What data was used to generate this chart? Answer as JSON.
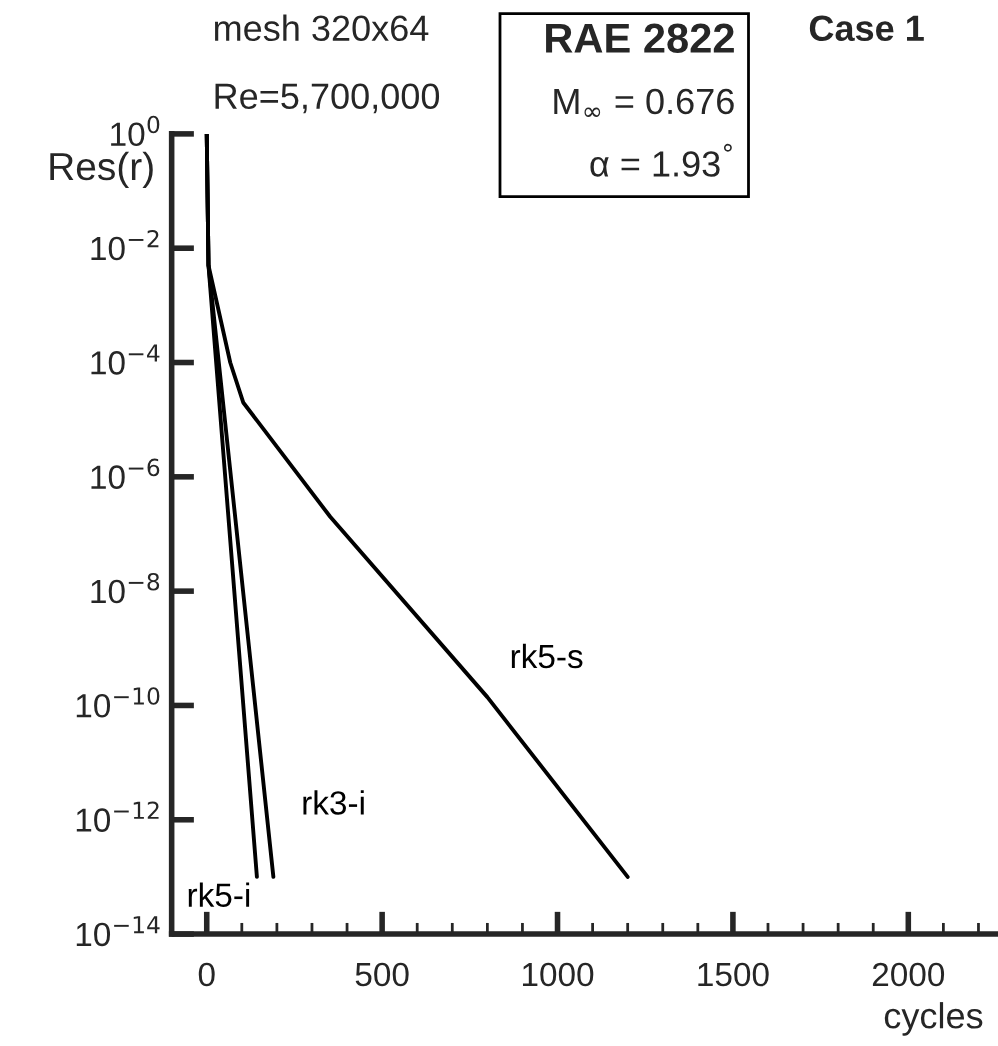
{
  "chart_data": {
    "type": "line",
    "xlabel": "cycles",
    "ylabel": "Res(r)",
    "annotations": [
      "mesh 320x64",
      "Re=5,700,000",
      "RAE 2822",
      "M$_{∞}$ = 0.676",
      "α = 1.93$^{°}$",
      "Case 1"
    ],
    "log": "y",
    "xlim": [
      -100,
      2250
    ],
    "xticks": [
      0,
      500,
      1000,
      1500,
      2000
    ],
    "ylim": [
      1e-14,
      1
    ],
    "yticks": [
      {
        "value": 1,
        "label": "10$^{0}$"
      },
      {
        "value": 0.01,
        "label": "10$^{−2}$"
      },
      {
        "value": 0.0001,
        "label": "10$^{−4}$"
      },
      {
        "value": 1e-06,
        "label": "10$^{−6}$"
      },
      {
        "value": 1e-08,
        "label": "10$^{−8}$"
      },
      {
        "value": 1e-10,
        "label": "10$^{−10}$"
      },
      {
        "value": 1e-12,
        "label": "10$^{−12}$"
      },
      {
        "value": 1e-14,
        "label": "10$^{−14}$"
      }
    ],
    "grid": false,
    "legend": false,
    "marker": "none",
    "line_style": "solid",
    "series": [
      {
        "name": "rk5-s",
        "color": "#000000",
        "x": [
          0,
          5,
          67,
          104,
          352,
          800,
          1200
        ],
        "values": [
          1,
          0.005,
          0.0001,
          2e-05,
          2e-07,
          1.4e-10,
          1e-13
        ]
      },
      {
        "name": "rk3-i",
        "color": "#000000",
        "x": [
          0,
          5,
          190
        ],
        "values": [
          1,
          0.005,
          1e-13
        ]
      },
      {
        "name": "rk5-i",
        "color": "#000000",
        "x": [
          0,
          5,
          143
        ],
        "values": [
          1,
          0.005,
          1e-13
        ]
      }
    ]
  }
}
